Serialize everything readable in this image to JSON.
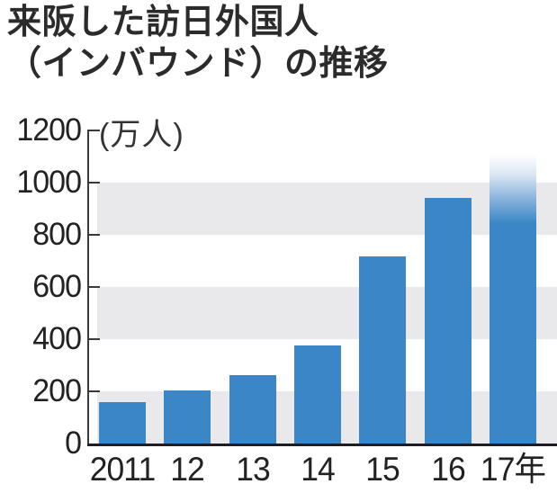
{
  "title": {
    "line1": "来阪した訪日外国人",
    "line2": "（インバウンド）の推移"
  },
  "chart_data": {
    "type": "bar",
    "title": "来阪した訪日外国人（インバウンド）の推移",
    "unit_label": "(万人)",
    "categories": [
      "2011",
      "12",
      "13",
      "14",
      "15",
      "16",
      "17年"
    ],
    "values": [
      158,
      203,
      262,
      376,
      716,
      941,
      1110
    ],
    "xlabel": "",
    "ylabel": "万人",
    "ylim": [
      0,
      1200
    ],
    "yticks": [
      0,
      200,
      400,
      600,
      800,
      1000,
      1200
    ],
    "grid": "striped-horizontal-bands",
    "striped_band_ranges": [
      [
        0,
        200
      ],
      [
        400,
        600
      ],
      [
        800,
        1000
      ]
    ],
    "legend": "none",
    "bar_color": "#3a86c6",
    "band_color": "#e9e9eb",
    "axis_color": "#3a3a3a",
    "text_color": "#222222",
    "last_bar_fade_top": true
  }
}
